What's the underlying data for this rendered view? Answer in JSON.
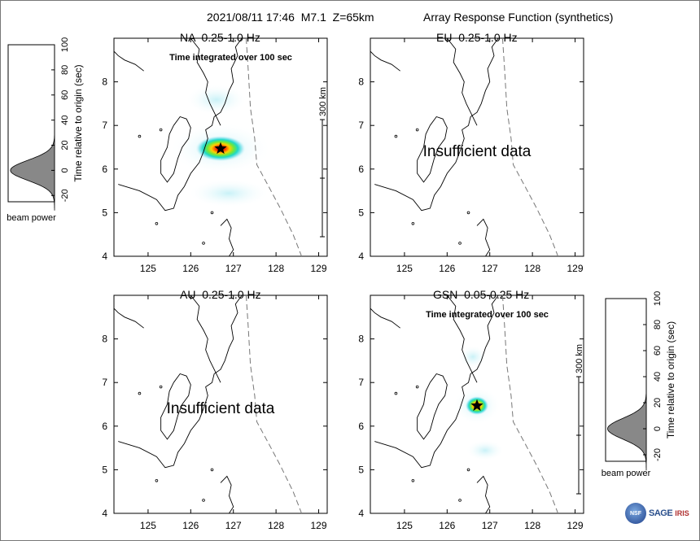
{
  "header": {
    "event": "2021/08/11 17:46  M7.1  Z=65km",
    "subtitle": "Array Response Function (synthetics)"
  },
  "logos": {
    "text_a": "SAGE",
    "text_b": "IRIS"
  },
  "chart_data": [
    {
      "type": "heatmap",
      "title": "NA  0.25-1.0 Hz",
      "annotation": "Time integrated over 100 sec",
      "scale_label": "300 km",
      "message": "",
      "xlim": [
        124.2,
        129.2
      ],
      "ylim": [
        4,
        9
      ],
      "xticks": [
        125,
        126,
        127,
        128,
        129
      ],
      "yticks": [
        4,
        5,
        6,
        7,
        8
      ],
      "source": {
        "lon": 126.7,
        "lat": 6.47,
        "spread_lon": 0.6,
        "spread_lat": 0.3
      },
      "has_beam": true
    },
    {
      "type": "heatmap",
      "title": "EU  0.25-1.0 Hz",
      "annotation": "",
      "scale_label": "",
      "message": "Insufficient data",
      "xlim": [
        124.2,
        129.2
      ],
      "ylim": [
        4,
        9
      ],
      "xticks": [
        125,
        126,
        127,
        128,
        129
      ],
      "yticks": [
        4,
        5,
        6,
        7,
        8
      ],
      "source": null,
      "has_beam": false
    },
    {
      "type": "heatmap",
      "title": "AU  0.25-1.0 Hz",
      "annotation": "",
      "scale_label": "",
      "message": "Insufficient data",
      "xlim": [
        124.2,
        129.2
      ],
      "ylim": [
        4,
        9
      ],
      "xticks": [
        125,
        126,
        127,
        128,
        129
      ],
      "yticks": [
        4,
        5,
        6,
        7,
        8
      ],
      "source": null,
      "has_beam": false
    },
    {
      "type": "heatmap",
      "title": "GSN  0.05-0.25 Hz",
      "annotation": "Time integrated over 100 sec",
      "scale_label": "300 km",
      "message": "",
      "xlim": [
        124.2,
        129.2
      ],
      "ylim": [
        4,
        9
      ],
      "xticks": [
        125,
        126,
        127,
        128,
        129
      ],
      "yticks": [
        4,
        5,
        6,
        7,
        8
      ],
      "source": {
        "lon": 126.7,
        "lat": 6.47,
        "spread_lon": 0.28,
        "spread_lat": 0.22
      },
      "has_beam": true
    },
    {
      "type": "area",
      "title": "beam power",
      "ylabel": "Time relative to origin (sec)",
      "ylim": [
        -25,
        100
      ],
      "yticks": [
        -20,
        0,
        20,
        40,
        60,
        80,
        100
      ],
      "peak_time": 0
    }
  ],
  "colors": {
    "map_line": "#000000",
    "trench": "#777777",
    "beam_fill": "#888888",
    "source_star": "#000000"
  }
}
